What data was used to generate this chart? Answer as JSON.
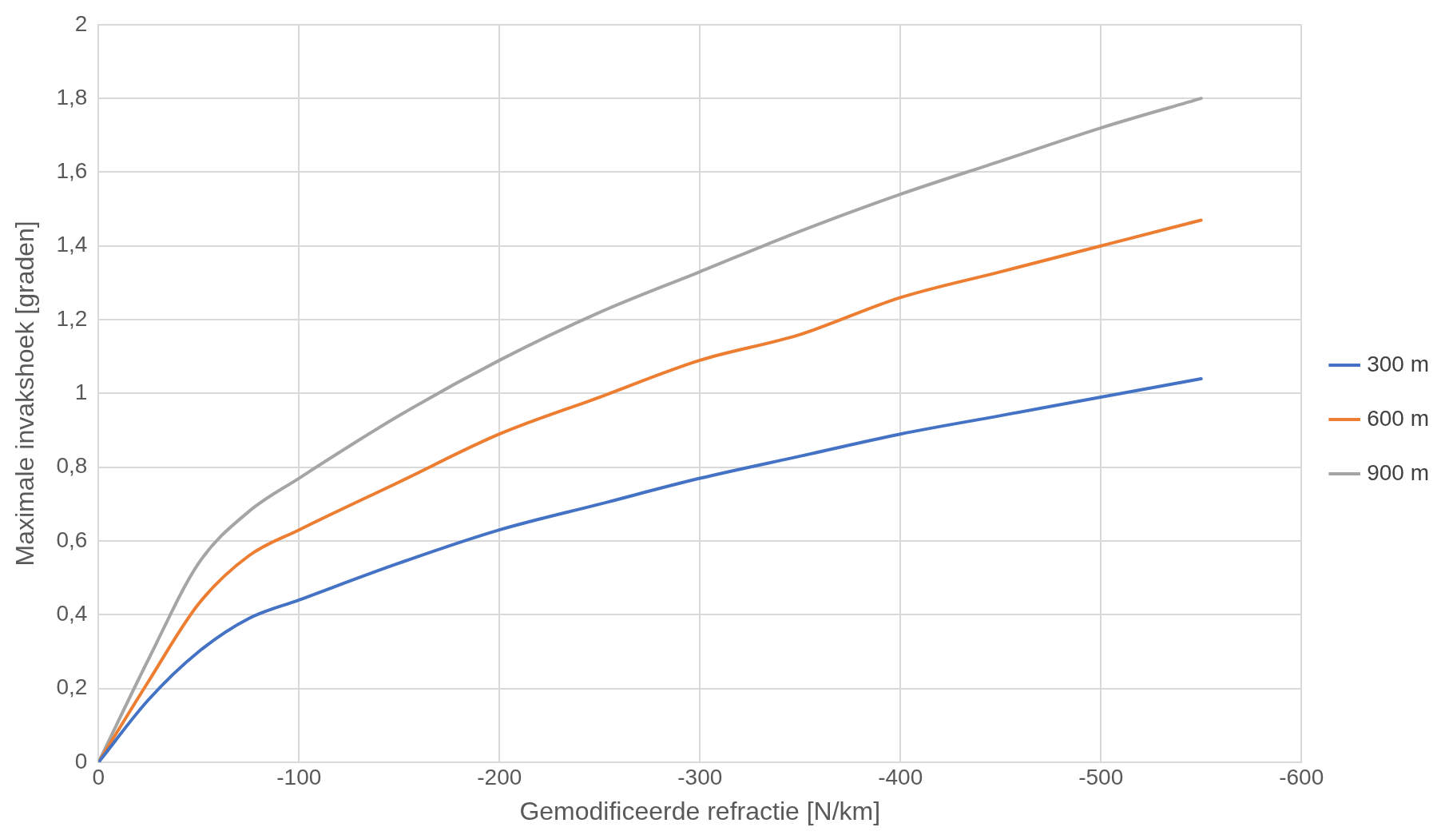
{
  "chart_data": {
    "type": "line",
    "xlabel": "Gemodificeerde refractie [N/km]",
    "ylabel": "Maximale invakshoek [graden]",
    "x": [
      0,
      -25,
      -50,
      -75,
      -100,
      -150,
      -200,
      -250,
      -300,
      -350,
      -400,
      -450,
      -500,
      -550
    ],
    "series": [
      {
        "name": "300 m",
        "color": "#4472c4",
        "values": [
          0,
          0.17,
          0.3,
          0.39,
          0.44,
          0.54,
          0.63,
          0.7,
          0.77,
          0.83,
          0.89,
          0.94,
          0.99,
          1.04
        ]
      },
      {
        "name": "600 m",
        "color": "#ed7d31",
        "values": [
          0,
          0.22,
          0.43,
          0.56,
          0.63,
          0.76,
          0.89,
          0.99,
          1.09,
          1.16,
          1.26,
          1.33,
          1.4,
          1.47
        ]
      },
      {
        "name": "900 m",
        "color": "#a5a5a5",
        "values": [
          0,
          0.28,
          0.54,
          0.68,
          0.77,
          0.94,
          1.09,
          1.22,
          1.33,
          1.44,
          1.54,
          1.63,
          1.72,
          1.8
        ]
      }
    ],
    "xlim": [
      0,
      -600
    ],
    "xticks": [
      0,
      -100,
      -200,
      -300,
      -400,
      -500,
      -600
    ],
    "ylim": [
      0,
      2
    ],
    "yticks": [
      0,
      {
        "value": 0.2,
        "label": "0,2"
      },
      {
        "value": 0.4,
        "label": "0,4"
      },
      {
        "value": 0.6,
        "label": "0,6"
      },
      {
        "value": 0.8,
        "label": "0,8"
      },
      1,
      {
        "value": 1.2,
        "label": "1,2"
      },
      {
        "value": 1.4,
        "label": "1,4"
      },
      {
        "value": 1.6,
        "label": "1,6"
      },
      {
        "value": 1.8,
        "label": "1,8"
      },
      2
    ],
    "grid": true,
    "legend": "right",
    "marker": "none",
    "line_style": "solid"
  }
}
